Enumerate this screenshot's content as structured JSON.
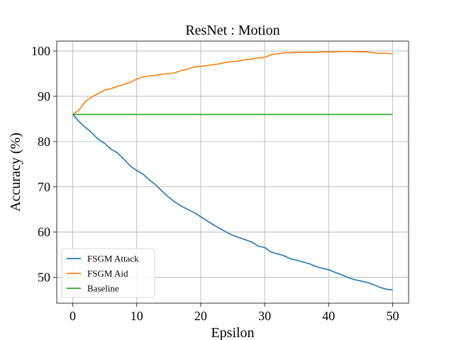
{
  "chart_data": {
    "type": "line",
    "title": "ResNet : Motion",
    "xlabel": "Epsilon",
    "ylabel": "Accuracy (%)",
    "xlim": [
      -2.5,
      52.5
    ],
    "ylim": [
      44.3,
      102.2
    ],
    "xticks": [
      0,
      10,
      20,
      30,
      40,
      50
    ],
    "yticks": [
      50,
      60,
      70,
      80,
      90,
      100
    ],
    "grid": true,
    "legend_position": "lower-left",
    "x": [
      0,
      1,
      2,
      3,
      4,
      5,
      6,
      7,
      8,
      9,
      10,
      11,
      12,
      13,
      14,
      15,
      16,
      17,
      18,
      19,
      20,
      21,
      22,
      23,
      24,
      25,
      26,
      27,
      28,
      29,
      30,
      31,
      32,
      33,
      34,
      35,
      36,
      37,
      38,
      39,
      40,
      41,
      42,
      43,
      44,
      45,
      46,
      47,
      48,
      49,
      50
    ],
    "series": [
      {
        "name": "FSGM Attack",
        "color": "#1f77b4",
        "values": [
          86.0,
          84.4,
          83.1,
          81.9,
          80.5,
          79.6,
          78.3,
          77.5,
          76.1,
          74.6,
          73.6,
          72.8,
          71.5,
          70.4,
          69.0,
          67.7,
          66.6,
          65.7,
          65.0,
          64.3,
          63.4,
          62.5,
          61.6,
          60.8,
          60.0,
          59.3,
          58.8,
          58.3,
          57.8,
          56.9,
          56.6,
          55.6,
          55.2,
          54.8,
          54.1,
          53.8,
          53.4,
          53.0,
          52.4,
          52.0,
          51.7,
          51.1,
          50.6,
          50.0,
          49.5,
          49.2,
          48.9,
          48.4,
          47.8,
          47.4,
          47.2
        ]
      },
      {
        "name": "FSGM Aid",
        "color": "#ff7f0e",
        "values": [
          86.0,
          87.0,
          88.9,
          89.9,
          90.6,
          91.4,
          91.7,
          92.2,
          92.6,
          93.1,
          93.8,
          94.3,
          94.5,
          94.6,
          94.9,
          95.0,
          95.2,
          95.7,
          96.0,
          96.5,
          96.6,
          96.8,
          97.0,
          97.2,
          97.5,
          97.7,
          97.8,
          98.1,
          98.2,
          98.5,
          98.6,
          99.2,
          99.4,
          99.6,
          99.6,
          99.7,
          99.7,
          99.7,
          99.7,
          99.8,
          99.8,
          99.8,
          99.9,
          99.9,
          99.9,
          99.8,
          99.8,
          99.6,
          99.5,
          99.5,
          99.4
        ]
      },
      {
        "name": "Baseline",
        "color": "#2ca02c",
        "values": [
          86.0,
          86.0,
          86.0,
          86.0,
          86.0,
          86.0,
          86.0,
          86.0,
          86.0,
          86.0,
          86.0,
          86.0,
          86.0,
          86.0,
          86.0,
          86.0,
          86.0,
          86.0,
          86.0,
          86.0,
          86.0,
          86.0,
          86.0,
          86.0,
          86.0,
          86.0,
          86.0,
          86.0,
          86.0,
          86.0,
          86.0,
          86.0,
          86.0,
          86.0,
          86.0,
          86.0,
          86.0,
          86.0,
          86.0,
          86.0,
          86.0,
          86.0,
          86.0,
          86.0,
          86.0,
          86.0,
          86.0,
          86.0,
          86.0,
          86.0,
          86.0
        ]
      }
    ]
  }
}
